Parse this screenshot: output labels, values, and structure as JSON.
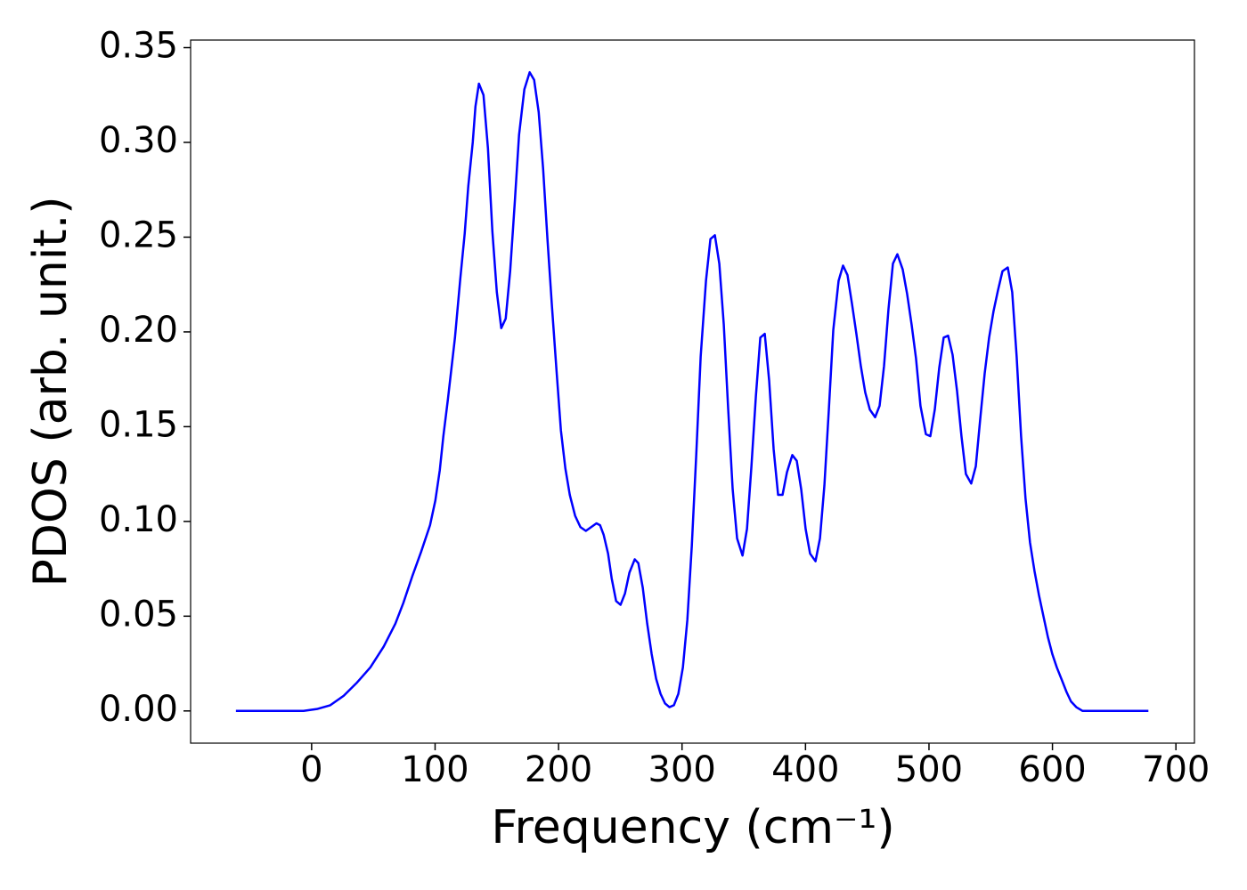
{
  "chart_data": {
    "type": "line",
    "xlabel": "Frequency (cm⁻¹)",
    "ylabel": "PDOS (arb. unit.)",
    "color": "#0000ff",
    "xlim": [
      -98,
      715
    ],
    "ylim": [
      -0.017,
      0.354
    ],
    "xticks": [
      0,
      100,
      200,
      300,
      400,
      500,
      600,
      700
    ],
    "yticks": [
      {
        "value": 0,
        "label": "0.00"
      },
      {
        "value": 0.05,
        "label": "0.05"
      },
      {
        "value": 0.1,
        "label": "0.10"
      },
      {
        "value": 0.15,
        "label": "0.15"
      },
      {
        "value": 0.2,
        "label": "0.20"
      },
      {
        "value": 0.25,
        "label": "0.25"
      },
      {
        "value": 0.3,
        "label": "0.30"
      },
      {
        "value": 0.35,
        "label": "0.35"
      }
    ],
    "x": [
      -61.3,
      -6.5,
      4.3,
      15.1,
      26.0,
      36.8,
      47.6,
      58.4,
      67.8,
      74.3,
      81.5,
      88.7,
      95.9,
      100.2,
      103.8,
      106.7,
      110.3,
      116.1,
      120.4,
      124.0,
      126.9,
      130.5,
      132.7,
      135.5,
      139.2,
      142.8,
      146.4,
      150.0,
      153.6,
      157.2,
      160.8,
      164.4,
      168.0,
      172.3,
      176.6,
      180.2,
      183.9,
      187.5,
      191.1,
      194.7,
      198.3,
      201.9,
      205.5,
      209.1,
      213.4,
      217.7,
      222.1,
      226.4,
      230.7,
      233.6,
      236.5,
      240.1,
      243.0,
      246.6,
      250.2,
      253.8,
      257.4,
      261.7,
      264.6,
      268.2,
      271.8,
      275.4,
      279.0,
      282.6,
      286.2,
      289.8,
      293.4,
      297.0,
      300.7,
      304.3,
      307.9,
      311.5,
      315.1,
      319.4,
      323.0,
      326.6,
      330.2,
      333.8,
      337.4,
      341.0,
      344.6,
      349.0,
      352.6,
      356.2,
      359.8,
      363.4,
      367.0,
      370.6,
      374.2,
      377.8,
      381.4,
      385.0,
      389.3,
      392.9,
      396.5,
      400.1,
      403.7,
      408.1,
      411.7,
      415.3,
      418.9,
      422.5,
      426.8,
      430.4,
      434.0,
      437.6,
      441.2,
      444.8,
      448.4,
      452.1,
      456.4,
      460.0,
      463.6,
      467.2,
      470.8,
      474.4,
      478.7,
      482.3,
      485.9,
      489.5,
      493.1,
      497.5,
      501.1,
      504.7,
      508.3,
      511.9,
      515.5,
      519.1,
      522.7,
      526.3,
      529.9,
      534.2,
      537.9,
      541.5,
      545.1,
      548.7,
      552.3,
      555.9,
      559.5,
      563.8,
      567.4,
      571.0,
      574.6,
      578.2,
      581.8,
      585.4,
      589.1,
      592.7,
      596.3,
      599.9,
      603.5,
      607.8,
      611.4,
      615.0,
      619.3,
      624.4,
      635.2,
      677.7
    ],
    "values": [
      0,
      0,
      0.001,
      0.003,
      0.008,
      0.015,
      0.023,
      0.034,
      0.046,
      0.057,
      0.071,
      0.084,
      0.098,
      0.111,
      0.127,
      0.145,
      0.164,
      0.197,
      0.228,
      0.252,
      0.277,
      0.3,
      0.319,
      0.331,
      0.325,
      0.297,
      0.253,
      0.221,
      0.202,
      0.207,
      0.232,
      0.267,
      0.304,
      0.328,
      0.337,
      0.333,
      0.316,
      0.286,
      0.248,
      0.213,
      0.18,
      0.148,
      0.128,
      0.114,
      0.103,
      0.097,
      0.095,
      0.097,
      0.099,
      0.098,
      0.093,
      0.083,
      0.07,
      0.058,
      0.056,
      0.062,
      0.073,
      0.08,
      0.078,
      0.065,
      0.046,
      0.03,
      0.017,
      0.009,
      0.004,
      0.002,
      0.003,
      0.009,
      0.023,
      0.048,
      0.087,
      0.135,
      0.187,
      0.227,
      0.249,
      0.251,
      0.236,
      0.204,
      0.159,
      0.117,
      0.091,
      0.082,
      0.096,
      0.129,
      0.166,
      0.197,
      0.199,
      0.174,
      0.138,
      0.114,
      0.114,
      0.126,
      0.135,
      0.132,
      0.117,
      0.096,
      0.083,
      0.079,
      0.091,
      0.119,
      0.159,
      0.201,
      0.227,
      0.235,
      0.23,
      0.215,
      0.199,
      0.182,
      0.168,
      0.159,
      0.155,
      0.161,
      0.182,
      0.212,
      0.236,
      0.241,
      0.233,
      0.22,
      0.204,
      0.186,
      0.161,
      0.146,
      0.145,
      0.159,
      0.181,
      0.197,
      0.198,
      0.188,
      0.169,
      0.145,
      0.125,
      0.12,
      0.129,
      0.154,
      0.178,
      0.197,
      0.211,
      0.222,
      0.232,
      0.234,
      0.221,
      0.187,
      0.145,
      0.112,
      0.089,
      0.074,
      0.061,
      0.05,
      0.039,
      0.03,
      0.023,
      0.016,
      0.01,
      0.005,
      0.002,
      0,
      0,
      0
    ]
  }
}
